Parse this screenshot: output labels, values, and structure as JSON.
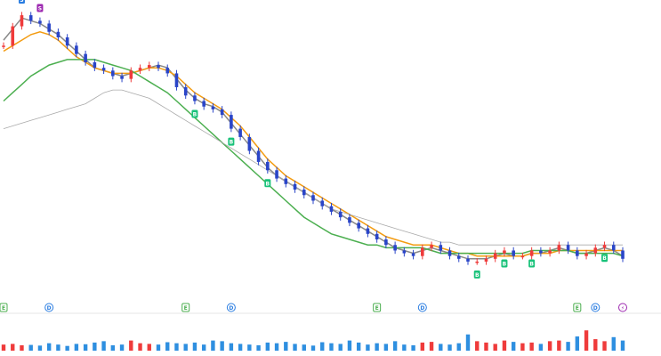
{
  "chart_data": {
    "type": "line",
    "title": "",
    "xlabel": "",
    "ylabel": "",
    "ylim": [
      0,
      100
    ],
    "volume_ylim": [
      0,
      100
    ],
    "grid": false,
    "legend": "none",
    "series": [
      {
        "values": [
          90,
          94,
          98,
          97,
          96,
          94,
          92,
          89,
          86,
          83,
          80,
          79,
          78,
          77,
          78,
          79,
          80,
          81,
          80,
          76,
          72,
          69,
          67,
          66,
          64,
          60,
          56,
          52,
          48,
          44,
          41,
          39,
          37,
          35,
          33,
          31,
          29,
          27,
          25,
          23,
          21,
          19,
          17,
          15,
          14,
          13,
          14,
          15,
          14,
          13,
          12,
          11,
          11,
          11,
          12,
          13,
          12,
          12,
          13,
          13,
          14,
          15,
          14,
          13,
          13,
          14,
          15,
          14,
          12
        ]
      },
      {
        "values": [
          86,
          88,
          90,
          92,
          93,
          92,
          90,
          87,
          84,
          82,
          80,
          79,
          78,
          78,
          78,
          79,
          80,
          80,
          79,
          77,
          74,
          71,
          69,
          67,
          65,
          62,
          59,
          55,
          51,
          47,
          44,
          41,
          39,
          37,
          35,
          33,
          31,
          29,
          27,
          25,
          23,
          21,
          19,
          18,
          17,
          16,
          16,
          16,
          15,
          14,
          13,
          13,
          12,
          12,
          12,
          12,
          12,
          12,
          13,
          13,
          13,
          14,
          14,
          14,
          14,
          14,
          14,
          14,
          14
        ]
      },
      {
        "values": [
          68,
          71,
          74,
          77,
          79,
          81,
          82,
          83,
          83,
          83,
          83,
          82,
          81,
          80,
          79,
          77,
          75,
          73,
          71,
          68,
          65,
          62,
          59,
          56,
          53,
          50,
          47,
          44,
          41,
          38,
          35,
          32,
          29,
          26,
          24,
          22,
          20,
          19,
          18,
          17,
          16,
          16,
          15,
          15,
          15,
          15,
          15,
          14,
          13,
          13,
          13,
          13,
          13,
          13,
          13,
          13,
          13,
          13,
          14,
          14,
          14,
          14,
          14,
          13,
          13,
          13,
          13,
          13,
          12
        ]
      },
      {
        "values": [
          58,
          59,
          60,
          61,
          62,
          63,
          64,
          65,
          66,
          67,
          69,
          71,
          72,
          72,
          71,
          70,
          69,
          67,
          65,
          63,
          61,
          59,
          57,
          55,
          53,
          51,
          49,
          47,
          45,
          43,
          41,
          39,
          37,
          35,
          33,
          31,
          29,
          28,
          27,
          26,
          25,
          24,
          23,
          22,
          21,
          20,
          19,
          18,
          17,
          17,
          16,
          16,
          16,
          16,
          16,
          16,
          16,
          16,
          16,
          16,
          16,
          16,
          16,
          16,
          16,
          16,
          16,
          16,
          16
        ]
      }
    ],
    "series_colors": [
      "#888888",
      "#f39c12",
      "#4caf50",
      "#aaaaaa"
    ],
    "candles": {
      "values": [
        88,
        95,
        99,
        97,
        96,
        93,
        91,
        88,
        85,
        82,
        80,
        79,
        77,
        76,
        79,
        80,
        81,
        80,
        78,
        73,
        70,
        68,
        66,
        65,
        63,
        58,
        55,
        50,
        46,
        43,
        40,
        38,
        36,
        34,
        32,
        30,
        28,
        26,
        24,
        22,
        20,
        18,
        16,
        14,
        13,
        12,
        15,
        16,
        14,
        12,
        11,
        10,
        10,
        11,
        13,
        14,
        12,
        12,
        14,
        13,
        14,
        16,
        14,
        12,
        13,
        15,
        16,
        14,
        11
      ]
    },
    "colors": {
      "up": "#ef3b3b",
      "down": "#2a45c8"
    },
    "markers": [
      {
        "label": "S",
        "color": "#2a7de1"
      },
      {
        "label": "S",
        "color": "#9c27b0"
      },
      {
        "label": "B",
        "color": "#19c27a"
      },
      {
        "label": "B",
        "color": "#19c27a"
      },
      {
        "label": "B",
        "color": "#19c27a"
      },
      {
        "label": "B",
        "color": "#19c27a"
      },
      {
        "label": "B",
        "color": "#19c27a"
      },
      {
        "label": "B",
        "color": "#19c27a"
      },
      {
        "label": "B",
        "color": "#19c27a"
      }
    ],
    "events": [
      {
        "label": "E",
        "color": "#4caf50"
      },
      {
        "label": "D",
        "color": "#2a7de1"
      },
      {
        "label": "E",
        "color": "#4caf50"
      },
      {
        "label": "D",
        "color": "#2a7de1"
      },
      {
        "label": "E",
        "color": "#4caf50"
      },
      {
        "label": "D",
        "color": "#2a7de1"
      },
      {
        "label": "E",
        "color": "#4caf50"
      },
      {
        "label": "D",
        "color": "#2a7de1"
      },
      {
        "label": "⚡",
        "color": "#9c27b0"
      }
    ],
    "volume": [
      18,
      20,
      16,
      17,
      15,
      22,
      18,
      14,
      20,
      19,
      24,
      28,
      16,
      18,
      30,
      22,
      20,
      18,
      25,
      22,
      20,
      24,
      18,
      30,
      28,
      22,
      20,
      18,
      16,
      24,
      22,
      26,
      20,
      18,
      15,
      25,
      22,
      20,
      30,
      24,
      18,
      22,
      20,
      28,
      18,
      16,
      24,
      26,
      20,
      18,
      22,
      48,
      28,
      24,
      20,
      30,
      26,
      22,
      24,
      20,
      28,
      30,
      26,
      42,
      60,
      34,
      28,
      40,
      30
    ]
  }
}
